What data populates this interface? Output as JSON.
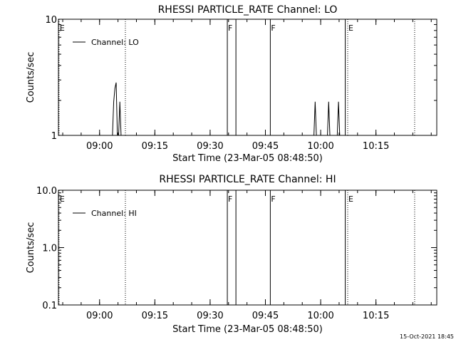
{
  "chart_data": [
    {
      "type": "line",
      "title": "RHESSI PARTICLE_RATE Channel: LO",
      "xlabel": "Start Time (23-Mar-05 08:48:50)",
      "ylabel": "Counts/sec",
      "y_scale": "log",
      "ylim": [
        1,
        10
      ],
      "y_ticks": [
        {
          "value": 1,
          "label": "1"
        },
        {
          "value": 10,
          "label": "10"
        }
      ],
      "xlim": [
        "08:48:50",
        "10:31:30"
      ],
      "x_ticks": [
        "09:00",
        "09:15",
        "09:30",
        "09:45",
        "10:00",
        "10:15"
      ],
      "legend": {
        "position": "top-left",
        "entries": [
          "Channel: LO"
        ]
      },
      "series": [
        {
          "name": "Channel: LO",
          "x": [
            "09:01:30",
            "09:03:30",
            "09:03:50",
            "09:04:10",
            "09:04:30",
            "09:04:50",
            "09:05:10",
            "09:05:30",
            "09:05:50",
            "09:06:10",
            "09:06:30",
            "09:58:10",
            "09:58:30",
            "09:58:50",
            "09:59:10",
            "10:01:50",
            "10:02:10",
            "10:02:30",
            "10:02:50",
            "10:04:10",
            "10:04:30",
            "10:04:50",
            "10:05:10",
            "10:05:30"
          ],
          "values": [
            1,
            1,
            1.95,
            2.55,
            2.85,
            1,
            1,
            1.95,
            1,
            1,
            1,
            1,
            1.95,
            1,
            1,
            1,
            1.95,
            1,
            1,
            1,
            1,
            1.95,
            1,
            1
          ]
        }
      ],
      "event_lines": [
        {
          "time": "08:49:00",
          "label": "E",
          "style": "dotted"
        },
        {
          "time": "09:07:00",
          "label": "",
          "style": "dotted"
        },
        {
          "time": "09:34:40",
          "label": "F",
          "style": "solid"
        },
        {
          "time": "09:37:00",
          "label": "",
          "style": "solid"
        },
        {
          "time": "09:46:20",
          "label": "F",
          "style": "solid"
        },
        {
          "time": "10:06:40",
          "label": "",
          "style": "solid"
        },
        {
          "time": "10:07:20",
          "label": "E",
          "style": "dotted"
        },
        {
          "time": "10:25:30",
          "label": "",
          "style": "dotted"
        }
      ]
    },
    {
      "type": "line",
      "title": "RHESSI PARTICLE_RATE Channel: HI",
      "xlabel": "Start Time (23-Mar-05 08:48:50)",
      "ylabel": "Counts/sec",
      "y_scale": "log",
      "ylim": [
        0.1,
        10
      ],
      "y_ticks": [
        {
          "value": 0.1,
          "label": "0.1"
        },
        {
          "value": 1,
          "label": "1.0"
        },
        {
          "value": 10,
          "label": "10.0"
        }
      ],
      "xlim": [
        "08:48:50",
        "10:31:30"
      ],
      "x_ticks": [
        "09:00",
        "09:15",
        "09:30",
        "09:45",
        "10:00",
        "10:15"
      ],
      "legend": {
        "position": "top-left",
        "entries": [
          "Channel: HI"
        ]
      },
      "series": [
        {
          "name": "Channel: HI",
          "x": [],
          "values": []
        }
      ],
      "event_lines": [
        {
          "time": "08:49:00",
          "label": "E",
          "style": "dotted"
        },
        {
          "time": "09:07:00",
          "label": "",
          "style": "dotted"
        },
        {
          "time": "09:34:40",
          "label": "F",
          "style": "solid"
        },
        {
          "time": "09:37:00",
          "label": "",
          "style": "solid"
        },
        {
          "time": "09:46:20",
          "label": "F",
          "style": "solid"
        },
        {
          "time": "10:06:40",
          "label": "",
          "style": "solid"
        },
        {
          "time": "10:07:20",
          "label": "E",
          "style": "dotted"
        },
        {
          "time": "10:25:30",
          "label": "",
          "style": "dotted"
        }
      ]
    }
  ],
  "footer": {
    "timestamp": "15-Oct-2021 18:45"
  }
}
